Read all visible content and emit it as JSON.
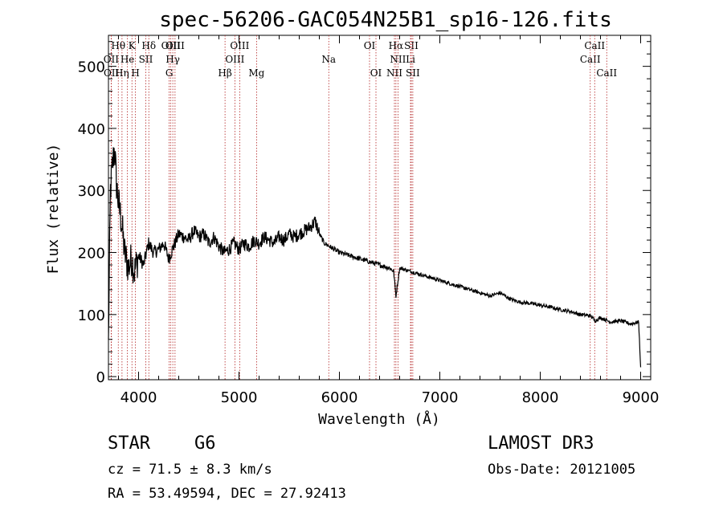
{
  "chart_data": {
    "type": "line",
    "title": "spec-56206-GAC054N25B1_sp16-126.fits",
    "xlabel": "Wavelength (Å)",
    "ylabel": "Flux (relative)",
    "xlim": [
      3700,
      9100
    ],
    "ylim": [
      -5,
      550
    ],
    "xticks": [
      4000,
      5000,
      6000,
      7000,
      8000,
      9000
    ],
    "yticks": [
      0,
      100,
      200,
      300,
      400,
      500
    ],
    "grid": false,
    "series": [
      {
        "name": "flux",
        "color": "#000000",
        "x": [
          3700,
          3720,
          3740,
          3760,
          3780,
          3800,
          3830,
          3860,
          3900,
          3930,
          3960,
          4000,
          4050,
          4100,
          4150,
          4200,
          4250,
          4300,
          4350,
          4400,
          4450,
          4500,
          4550,
          4600,
          4650,
          4700,
          4750,
          4800,
          4850,
          4900,
          4950,
          5000,
          5050,
          5100,
          5150,
          5200,
          5250,
          5300,
          5350,
          5400,
          5450,
          5500,
          5550,
          5600,
          5650,
          5700,
          5730,
          5760,
          5800,
          5850,
          5900,
          5950,
          6000,
          6100,
          6200,
          6300,
          6400,
          6500,
          6540,
          6563,
          6600,
          6700,
          6800,
          6900,
          7000,
          7100,
          7200,
          7300,
          7400,
          7500,
          7600,
          7700,
          7800,
          7900,
          8000,
          8100,
          8200,
          8300,
          8400,
          8500,
          8550,
          8600,
          8700,
          8800,
          8900,
          8980,
          9000
        ],
        "y": [
          60,
          300,
          340,
          370,
          310,
          280,
          250,
          200,
          175,
          190,
          170,
          195,
          180,
          215,
          200,
          205,
          215,
          190,
          210,
          230,
          225,
          220,
          235,
          225,
          230,
          215,
          225,
          210,
          200,
          205,
          215,
          205,
          215,
          210,
          220,
          215,
          225,
          220,
          215,
          225,
          220,
          230,
          225,
          230,
          235,
          240,
          245,
          250,
          230,
          215,
          210,
          205,
          200,
          195,
          190,
          185,
          180,
          175,
          170,
          130,
          175,
          170,
          165,
          160,
          155,
          150,
          145,
          140,
          135,
          130,
          135,
          125,
          120,
          118,
          115,
          112,
          108,
          105,
          100,
          98,
          90,
          95,
          88,
          90,
          85,
          88,
          15
        ]
      }
    ],
    "lines": [
      {
        "label": "Hθ",
        "x": 3798,
        "row": 0
      },
      {
        "label": "OII",
        "x": 3727,
        "row": 1
      },
      {
        "label": "OII",
        "x": 3729,
        "row": 2
      },
      {
        "label": "Hη",
        "x": 3835,
        "row": 2
      },
      {
        "label": "He",
        "x": 3889,
        "row": 1
      },
      {
        "label": "K",
        "x": 3934,
        "row": 0
      },
      {
        "label": "H",
        "x": 3969,
        "row": 2
      },
      {
        "label": "SII",
        "x": 4072,
        "row": 1
      },
      {
        "label": "Hδ",
        "x": 4102,
        "row": 0
      },
      {
        "label": "G",
        "x": 4305,
        "row": 2
      },
      {
        "label": "OIII",
        "x": 4321,
        "row": 0
      },
      {
        "label": "Hγ",
        "x": 4341,
        "row": 1
      },
      {
        "label": "OIII",
        "x": 4363,
        "row": 0
      },
      {
        "label": "Hβ",
        "x": 4861,
        "row": 2
      },
      {
        "label": "OIII",
        "x": 4959,
        "row": 1
      },
      {
        "label": "OIII",
        "x": 5007,
        "row": 0
      },
      {
        "label": "Mg",
        "x": 5175,
        "row": 2
      },
      {
        "label": "Na",
        "x": 5894,
        "row": 1
      },
      {
        "label": "OI",
        "x": 6300,
        "row": 0
      },
      {
        "label": "OI",
        "x": 6364,
        "row": 2
      },
      {
        "label": "NII",
        "x": 6548,
        "row": 2
      },
      {
        "label": "Hα",
        "x": 6563,
        "row": 0
      },
      {
        "label": "NII",
        "x": 6583,
        "row": 1
      },
      {
        "label": "Li",
        "x": 6708,
        "row": 1
      },
      {
        "label": "SII",
        "x": 6716,
        "row": 0
      },
      {
        "label": "SII",
        "x": 6731,
        "row": 2
      },
      {
        "label": "CaII",
        "x": 8498,
        "row": 1
      },
      {
        "label": "CaII",
        "x": 8542,
        "row": 0
      },
      {
        "label": "CaII",
        "x": 8662,
        "row": 2
      }
    ]
  },
  "info": {
    "object_class": "STAR",
    "subclass": "G6",
    "survey": "LAMOST DR3",
    "cz": "cz = 71.5 ± 8.3 km/s",
    "obs_date": "Obs-Date: 20121005",
    "coords": "RA =  53.49594, DEC =  27.92413"
  }
}
